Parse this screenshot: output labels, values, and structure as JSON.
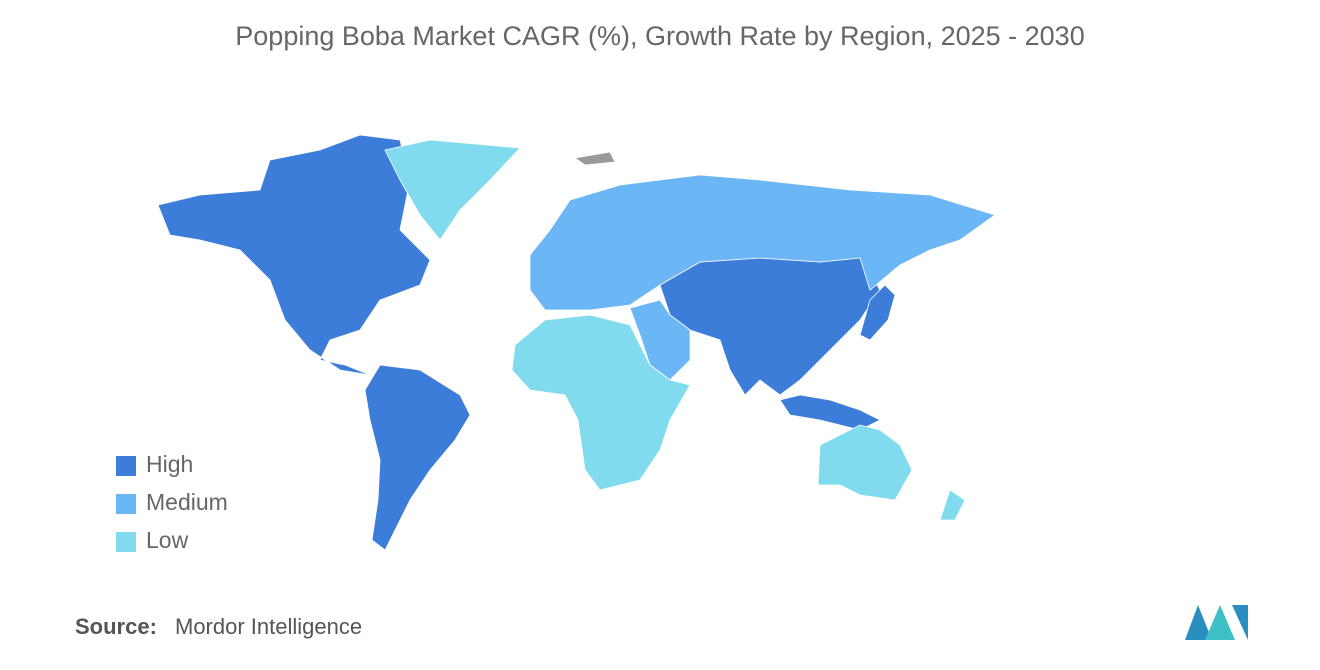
{
  "title": "Popping Boba Market CAGR (%), Growth Rate by Region, 2025 - 2030",
  "legend": [
    {
      "label": "High",
      "color": "#3b7dd8"
    },
    {
      "label": "Medium",
      "color": "#6bb6f5"
    },
    {
      "label": "Low",
      "color": "#7fdbed"
    }
  ],
  "source": {
    "label": "Source:",
    "text": "Mordor Intelligence"
  }
}
